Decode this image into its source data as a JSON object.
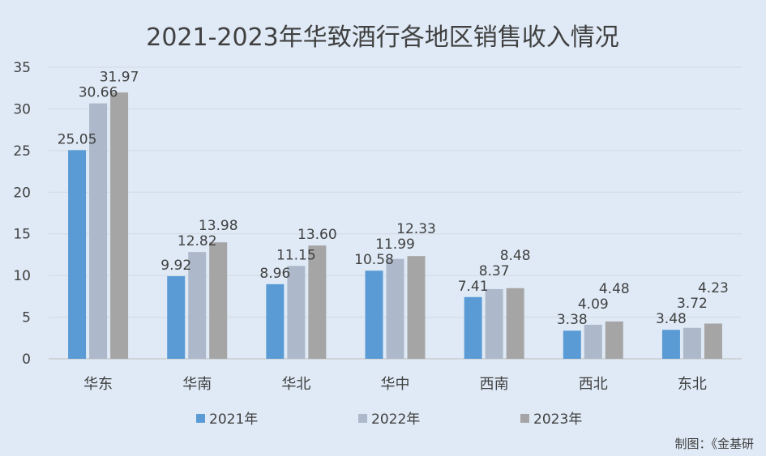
{
  "chart_data": {
    "type": "bar",
    "title": "2021-2023年华致酒行各地区销售收入情况",
    "categories": [
      "华东",
      "华南",
      "华北",
      "华中",
      "西南",
      "西北",
      "东北"
    ],
    "series": [
      {
        "name": "2021年",
        "color": "#5b9bd5",
        "values": [
          25.05,
          9.92,
          8.96,
          10.58,
          7.41,
          3.38,
          3.48
        ]
      },
      {
        "name": "2022年",
        "color": "#adb9ca",
        "values": [
          30.66,
          12.82,
          11.15,
          11.99,
          8.37,
          4.09,
          3.72
        ]
      },
      {
        "name": "2023年",
        "color": "#a5a5a5",
        "values": [
          31.97,
          13.98,
          13.6,
          12.33,
          8.48,
          4.48,
          4.23
        ]
      }
    ],
    "ylim": [
      0,
      35
    ],
    "yticks": [
      0,
      5,
      10,
      15,
      20,
      25,
      30,
      35
    ],
    "xlabel": "",
    "ylabel": "",
    "grid": true,
    "legend": "bottom"
  },
  "footer": "制图：《金基研"
}
